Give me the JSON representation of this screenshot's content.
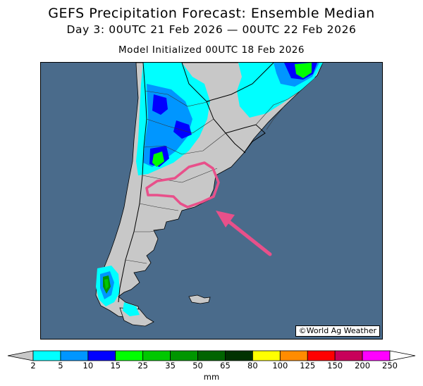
{
  "header": {
    "title": "GEFS Precipitation Forecast: Ensemble Median",
    "period": "Day 3: 00UTC 21 Feb 2026 — 00UTC 22 Feb 2026",
    "init": "Model Initialized 00UTC 18 Feb 2026"
  },
  "map": {
    "region": "Southern South America (Argentina, Chile, Uruguay, Paraguay, southern Brazil)",
    "ocean_color": "#4a6b8b",
    "land_color": "#c8c8c8",
    "annotation": {
      "outline": "pink-outlined-area",
      "arrow": "pink-arrow",
      "color": "#e8508a"
    },
    "credit": "©World Ag Weather"
  },
  "colorbar": {
    "unit": "mm",
    "ticks": [
      "2",
      "5",
      "10",
      "15",
      "25",
      "35",
      "50",
      "65",
      "80",
      "100",
      "125",
      "150",
      "200",
      "250"
    ],
    "colors": [
      "#00ffff",
      "#0096ff",
      "#0000ff",
      "#00ff00",
      "#00c800",
      "#009600",
      "#006400",
      "#003200",
      "#ffff00",
      "#ff8c00",
      "#ff0000",
      "#c8005a",
      "#ff00ff",
      "#a050c8"
    ]
  }
}
